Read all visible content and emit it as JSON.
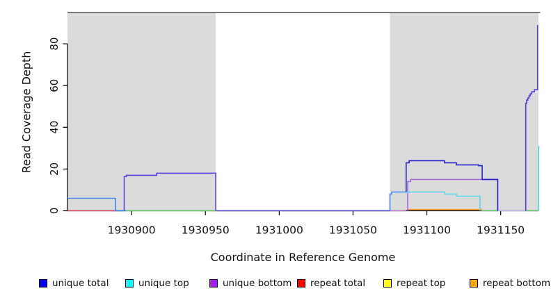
{
  "chart_data": {
    "type": "line",
    "title": "",
    "xlabel": "Coordinate in Reference Genome",
    "ylabel": "Read Coverage Depth",
    "x_ticks": [
      1930900,
      1930950,
      1931000,
      1931050,
      1931100,
      1931150
    ],
    "y_ticks": [
      0,
      20,
      40,
      60,
      80
    ],
    "xlim": [
      1930856.6,
      1931175.6
    ],
    "ylim": [
      0,
      95
    ],
    "grid": false,
    "legend_position": "bottom",
    "shade_color": "#dbdbdb",
    "shaded_regions": [
      {
        "from": 1930856.6,
        "to": 1930957
      },
      {
        "from": 1931075,
        "to": 1931175.6
      }
    ],
    "legend": [
      {
        "label": "unique total",
        "color": "#0000ff"
      },
      {
        "label": "unique top",
        "color": "#00ffff"
      },
      {
        "label": "unique bottom",
        "color": "#a020f0"
      },
      {
        "label": "repeat total",
        "color": "#ff0000"
      },
      {
        "label": "repeat top",
        "color": "#ffff00"
      },
      {
        "label": "repeat bottom",
        "color": "#ffa500"
      }
    ],
    "series": [
      {
        "name": "repeat-total-left-baseline",
        "color": "#e04b63",
        "points": [
          [
            1930856.6,
            0
          ],
          [
            1930890,
            0
          ]
        ]
      },
      {
        "name": "baseline-blue-gap",
        "color": "#3e86e8",
        "points": [
          [
            1930889,
            0
          ],
          [
            1930896,
            0
          ]
        ]
      },
      {
        "name": "baseline-green-left",
        "color": "#63ce66",
        "points": [
          [
            1930896,
            0
          ],
          [
            1930957,
            0
          ]
        ]
      },
      {
        "name": "baseline-mid",
        "color": "#5a50dc",
        "points": [
          [
            1930957,
            0
          ],
          [
            1931075,
            0
          ]
        ]
      },
      {
        "name": "baseline-orchid",
        "color": "#c77fd4",
        "points": [
          [
            1931075,
            0
          ],
          [
            1931086,
            0
          ]
        ]
      },
      {
        "name": "baseline-green-mid-right",
        "color": "#63ce66",
        "points": [
          [
            1931137,
            0
          ],
          [
            1931148,
            0
          ]
        ]
      },
      {
        "name": "baseline-lavender",
        "color": "#c8b5f0",
        "points": [
          [
            1931148,
            0
          ],
          [
            1931167,
            0
          ]
        ]
      },
      {
        "name": "baseline-green-far-right",
        "color": "#63ce66",
        "points": [
          [
            1931167,
            0
          ],
          [
            1931175.6,
            0
          ]
        ]
      },
      {
        "name": "repeat-bottom-right",
        "color": "#ff9c1f",
        "points": [
          [
            1931087,
            0
          ],
          [
            1931087,
            0.6
          ],
          [
            1931137,
            0.6
          ],
          [
            1931137,
            0
          ]
        ]
      },
      {
        "name": "unique-total-left",
        "color": "#3e86e8",
        "points": [
          [
            1930856.6,
            6
          ],
          [
            1930889,
            6
          ],
          [
            1930889,
            0
          ]
        ]
      },
      {
        "name": "unique-total-bottom-left-block",
        "color": "#5640e0",
        "points": [
          [
            1930895,
            0
          ],
          [
            1930895,
            16.4
          ],
          [
            1930896.5,
            16.4
          ],
          [
            1930896.5,
            17
          ],
          [
            1930917,
            17
          ],
          [
            1930917,
            18
          ],
          [
            1930957,
            18
          ],
          [
            1930957,
            0
          ]
        ]
      },
      {
        "name": "unique-bottom-right",
        "color": "#a66bdc",
        "points": [
          [
            1931087,
            0
          ],
          [
            1931087,
            14
          ],
          [
            1931089,
            14
          ],
          [
            1931089,
            15
          ],
          [
            1931148,
            15
          ],
          [
            1931148,
            0
          ]
        ]
      },
      {
        "name": "unique-top-right",
        "color": "#55dbea",
        "points": [
          [
            1931086,
            9
          ],
          [
            1931112,
            9
          ],
          [
            1931112,
            8
          ],
          [
            1931120,
            8
          ],
          [
            1931120,
            7
          ],
          [
            1931136,
            7
          ],
          [
            1931136,
            0
          ]
        ]
      },
      {
        "name": "unique-total-right-rise",
        "color": "#3e86e8",
        "points": [
          [
            1931075,
            0
          ],
          [
            1931075,
            8
          ],
          [
            1931076.2,
            8
          ],
          [
            1931076.2,
            9
          ],
          [
            1931086,
            9
          ]
        ]
      },
      {
        "name": "unique-total-right-block",
        "color": "#2222cf",
        "points": [
          [
            1931086,
            9
          ],
          [
            1931086,
            23
          ],
          [
            1931088,
            23
          ],
          [
            1931088,
            24
          ],
          [
            1931112,
            24
          ],
          [
            1931112,
            23
          ],
          [
            1931120,
            23
          ],
          [
            1931120,
            22
          ],
          [
            1931135,
            22
          ],
          [
            1931135,
            21.6
          ],
          [
            1931137.5,
            21.6
          ],
          [
            1931137.5,
            15
          ],
          [
            1931148,
            15
          ],
          [
            1931148,
            0
          ]
        ]
      },
      {
        "name": "unique-total-spike",
        "color": "#4b3be8",
        "points": [
          [
            1931167,
            0
          ],
          [
            1931167,
            51.5
          ],
          [
            1931167.6,
            51.5
          ],
          [
            1931167.6,
            53
          ],
          [
            1931168.4,
            53
          ],
          [
            1931168.4,
            54
          ],
          [
            1931169.2,
            54
          ],
          [
            1931169.2,
            55
          ],
          [
            1931170,
            55
          ],
          [
            1931170,
            56
          ],
          [
            1931171,
            56
          ],
          [
            1931171,
            57
          ],
          [
            1931172.8,
            57
          ],
          [
            1931172.8,
            58
          ],
          [
            1931175,
            58
          ],
          [
            1931175,
            89
          ]
        ]
      },
      {
        "name": "unique-top-spike",
        "color": "#4fd8e6",
        "points": [
          [
            1931175.7,
            0
          ],
          [
            1931175.7,
            31
          ]
        ]
      }
    ]
  }
}
